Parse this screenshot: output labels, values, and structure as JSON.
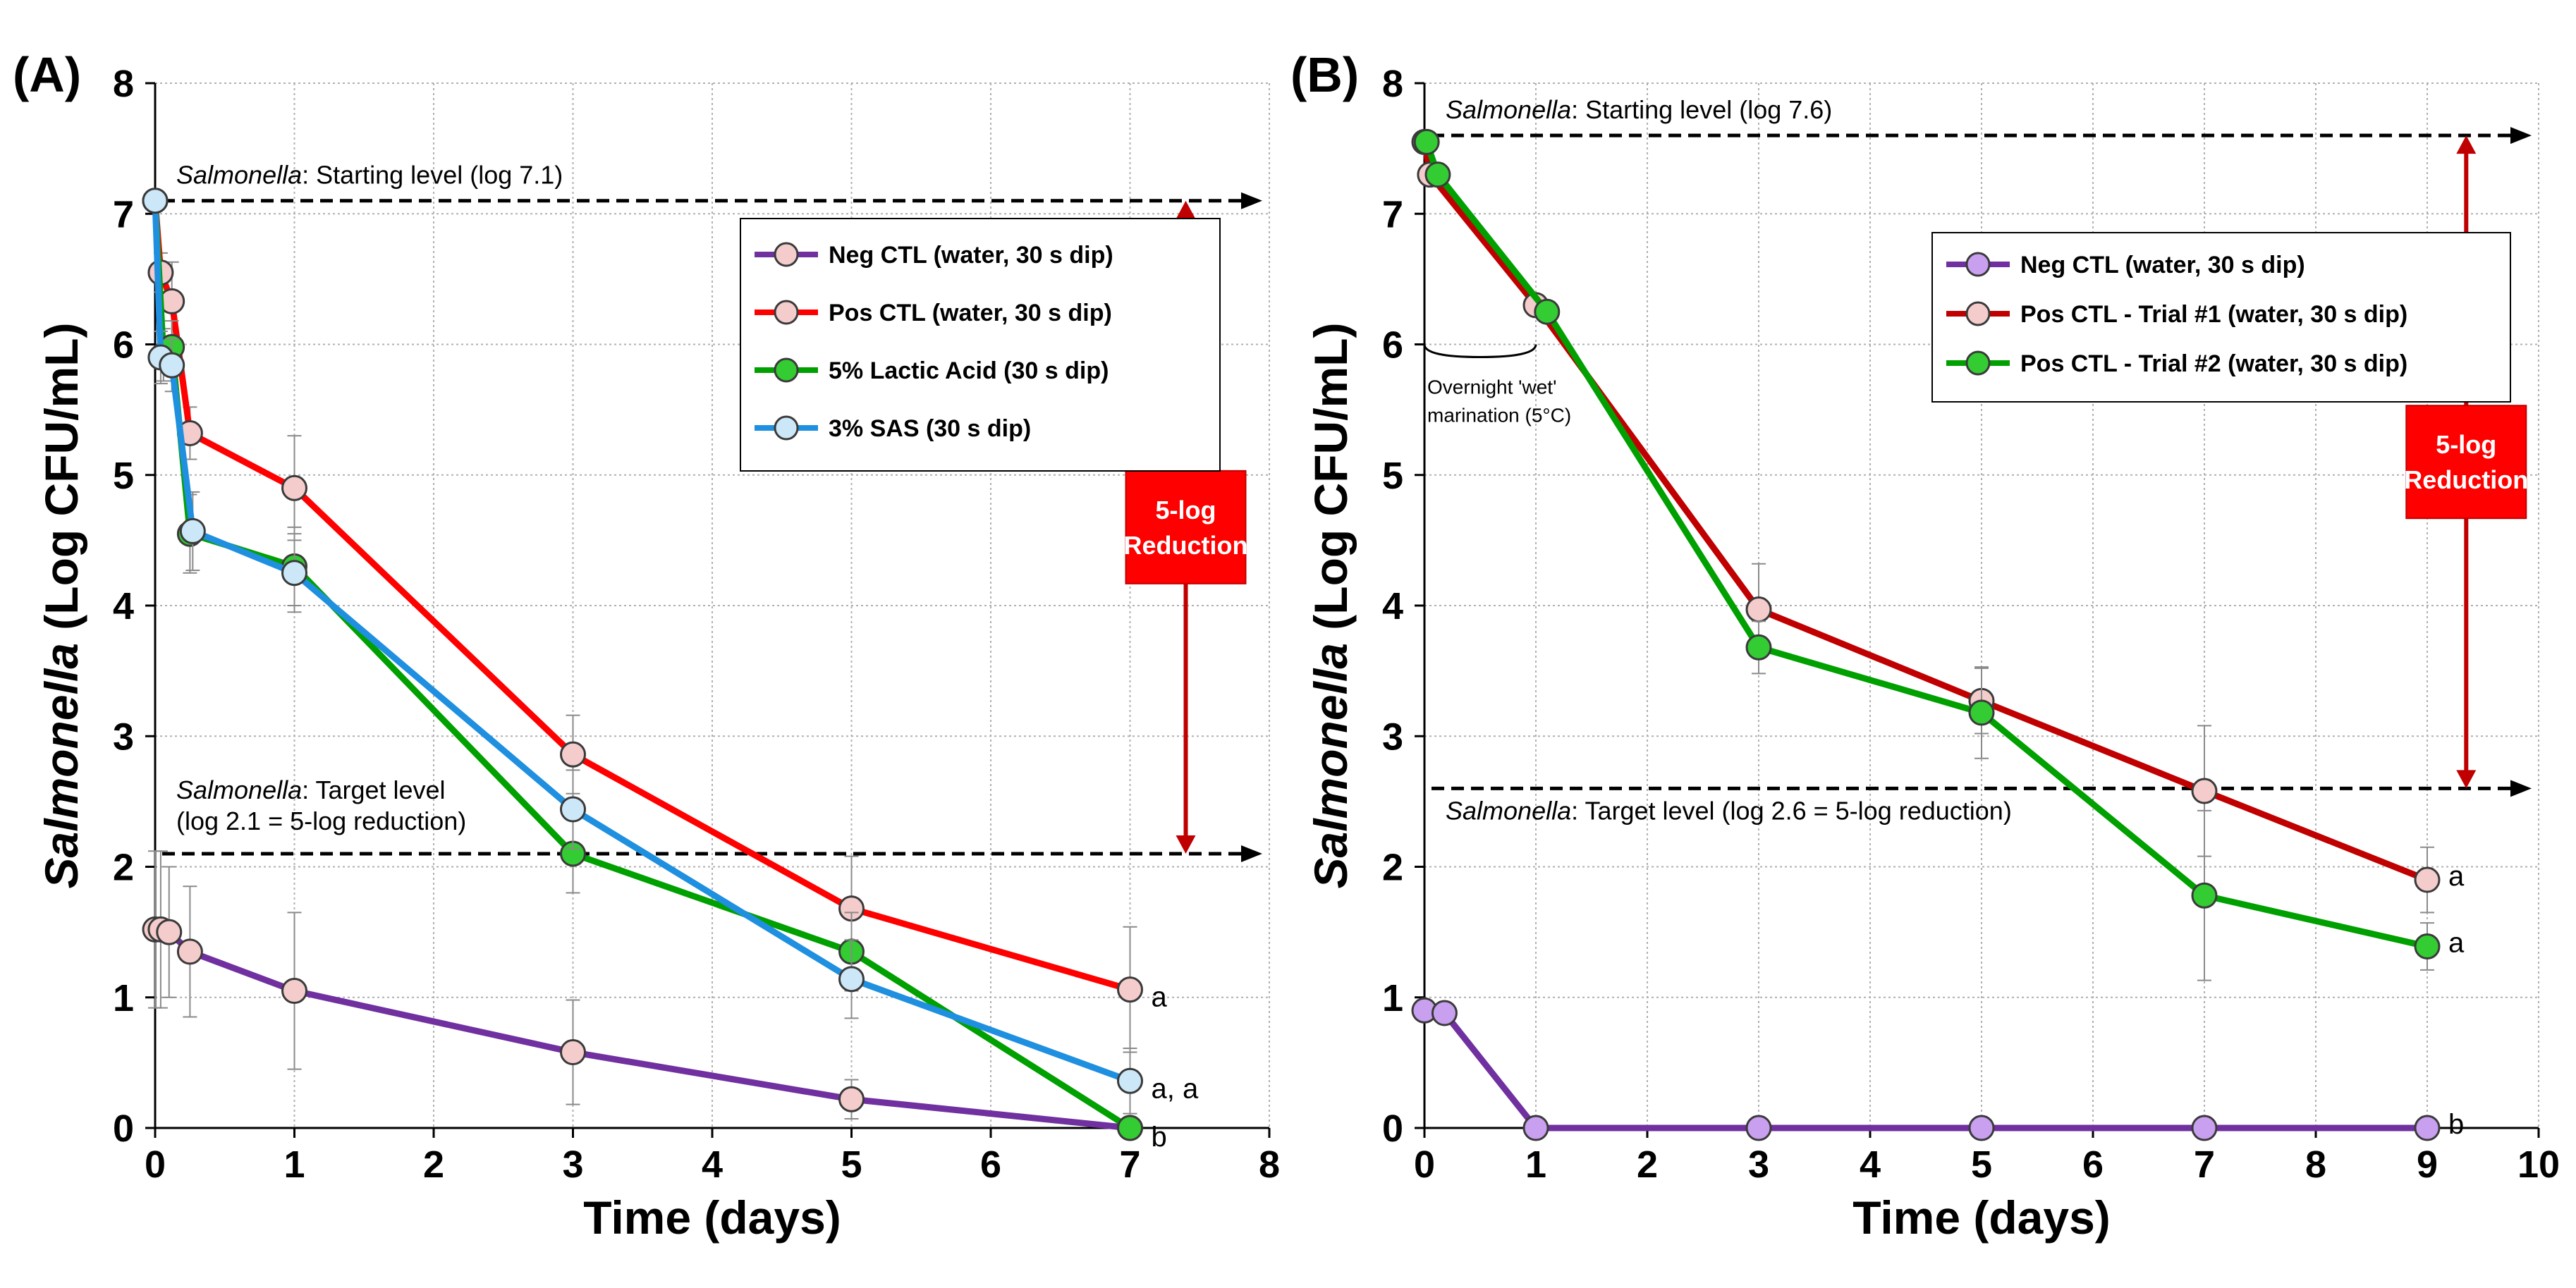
{
  "chart_data": [
    {
      "panel": "(A)",
      "type": "line",
      "xlabel": "Time (days)",
      "ylabel_italic": "Salmonella",
      "ylabel_rest": " (Log CFU/mL)",
      "xlim": [
        0,
        8
      ],
      "ylim": [
        0,
        8
      ],
      "xticks": [
        0,
        1,
        2,
        3,
        4,
        5,
        6,
        7,
        8
      ],
      "yticks": [
        0,
        1,
        2,
        3,
        4,
        5,
        6,
        7,
        8
      ],
      "legend_position": "top-right",
      "series": [
        {
          "name": "Neg CTL (water, 30 s dip)",
          "color": "#7030a0",
          "marker": "#f4cccc",
          "x": [
            0,
            0.04,
            0.1,
            0.25,
            1,
            3,
            5,
            7
          ],
          "y": [
            1.52,
            1.52,
            1.5,
            1.35,
            1.05,
            0.58,
            0.22,
            0.0
          ],
          "err": [
            0.6,
            0.6,
            0.5,
            0.5,
            0.6,
            0.4,
            0.15,
            0.0
          ],
          "sig": ""
        },
        {
          "name": "Pos CTL (water, 30 s dip)",
          "color": "#ff0000",
          "marker": "#f4cccc",
          "x": [
            0,
            0.04,
            0.12,
            0.25,
            1,
            3,
            5,
            7
          ],
          "y": [
            7.1,
            6.55,
            6.33,
            5.32,
            4.9,
            2.86,
            1.68,
            1.06
          ],
          "err": [
            0,
            0.15,
            0.3,
            0.2,
            0.4,
            0.3,
            0.4,
            0.48
          ],
          "sig": "a"
        },
        {
          "name": "5% Lactic Acid (30 s dip)",
          "color": "#00a000",
          "marker": "#33cc33",
          "x": [
            0,
            0.06,
            0.12,
            0.25,
            1,
            3,
            5,
            7
          ],
          "y": [
            7.1,
            5.92,
            5.98,
            4.55,
            4.3,
            2.1,
            1.35,
            0.0
          ],
          "err": [
            0,
            0.2,
            0.2,
            0.3,
            0.3,
            0.3,
            0.3,
            0.0
          ],
          "sig": "b"
        },
        {
          "name": "3% SAS (30 s dip)",
          "color": "#1f8fe0",
          "marker": "#cce8f8",
          "x": [
            0,
            0.04,
            0.12,
            0.27,
            1,
            3,
            5,
            7
          ],
          "y": [
            7.1,
            5.9,
            5.84,
            4.57,
            4.25,
            2.44,
            1.14,
            0.36
          ],
          "err": [
            0,
            0.2,
            0.2,
            0.3,
            0.3,
            0.3,
            0.3,
            0.25
          ],
          "sig": "a, a"
        }
      ],
      "reference_lines": [
        {
          "y": 7.1,
          "label_italic": "Salmonella",
          "label_rest": ": Starting level (log 7.1)"
        },
        {
          "y": 2.1,
          "label_italic": "Salmonella",
          "label_rest": ": Target level",
          "label_line2": "(log 2.1 = 5-log reduction)"
        }
      ],
      "reduction_box": {
        "line1": "5-log",
        "line2": "Reduction",
        "x": 7.4,
        "y_top": 7.1,
        "y_bottom": 2.1
      }
    },
    {
      "panel": "(B)",
      "type": "line",
      "xlabel": "Time (days)",
      "ylabel_italic": "Salmonella",
      "ylabel_rest": " (Log CFU/mL)",
      "xlim": [
        0,
        10
      ],
      "ylim": [
        0,
        8
      ],
      "xticks": [
        0,
        1,
        2,
        3,
        4,
        5,
        6,
        7,
        8,
        9,
        10
      ],
      "yticks": [
        0,
        1,
        2,
        3,
        4,
        5,
        6,
        7,
        8
      ],
      "legend_position": "top-right",
      "series": [
        {
          "name": "Neg CTL (water, 30 s dip)",
          "color": "#7030a0",
          "marker": "#c9a0f0",
          "x": [
            0,
            0.18,
            1,
            3,
            5,
            7,
            9
          ],
          "y": [
            0.9,
            0.88,
            0.0,
            0.0,
            0.0,
            0.0,
            0.0
          ],
          "err": [
            0,
            0,
            0,
            0,
            0,
            0,
            0
          ],
          "sig": "b"
        },
        {
          "name": "Pos CTL - Trial #1 (water, 30 s dip)",
          "color": "#c00000",
          "marker": "#f4cccc",
          "x": [
            0,
            0.05,
            1,
            3,
            5,
            7,
            9
          ],
          "y": [
            7.55,
            7.3,
            6.3,
            3.97,
            3.27,
            2.58,
            1.9
          ],
          "err": [
            0,
            0,
            0,
            0.35,
            0.25,
            0.5,
            0.25
          ],
          "sig": "a"
        },
        {
          "name": "Pos CTL - Trial #2 (water, 30 s dip)",
          "color": "#00a000",
          "marker": "#33cc33",
          "x": [
            0.02,
            0.12,
            1.1,
            3,
            5,
            7,
            9
          ],
          "y": [
            7.55,
            7.3,
            6.25,
            3.68,
            3.18,
            1.78,
            1.39
          ],
          "err": [
            0,
            0,
            0,
            0.2,
            0.35,
            0.65,
            0.18
          ],
          "sig": "a"
        }
      ],
      "reference_lines": [
        {
          "y": 7.6,
          "label_italic": "Salmonella",
          "label_rest": ": Starting level (log 7.6)"
        },
        {
          "y": 2.6,
          "label_italic": "Salmonella",
          "label_rest": ": Target level (log 2.6 = 5-log reduction)"
        }
      ],
      "reduction_box": {
        "line1": "5-log",
        "line2": "Reduction",
        "x": 9.35,
        "y_top": 7.6,
        "y_bottom": 2.6
      },
      "bracket_annotation": {
        "line1": "Overnight 'wet'",
        "line2": "marination (5°C)",
        "x_from": 0,
        "x_to": 1
      }
    }
  ]
}
